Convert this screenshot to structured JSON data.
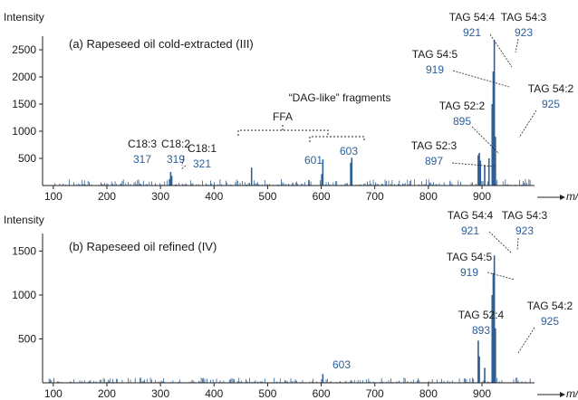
{
  "colors": {
    "spectrum": "#2f5f95",
    "mz_label": "#2c5e9b",
    "text": "#1a1a1a",
    "axis": "#222222"
  },
  "axis_unit_label": "m/z",
  "chart_data": [
    {
      "type": "bar",
      "ylabel": "Intensity",
      "xlabel": "m/z",
      "title": "(a) Rapeseed oil cold-extracted (III)",
      "xlim": [
        80,
        998
      ],
      "ylim": [
        0,
        2750
      ],
      "xticks": [
        100,
        200,
        300,
        400,
        500,
        600,
        700,
        800,
        900
      ],
      "yticks": [
        500,
        1000,
        1500,
        2000,
        2500
      ],
      "peaks": [
        {
          "x": 317,
          "y": 120
        },
        {
          "x": 319,
          "y": 250
        },
        {
          "x": 321,
          "y": 180
        },
        {
          "x": 470,
          "y": 330
        },
        {
          "x": 577,
          "y": 100
        },
        {
          "x": 601,
          "y": 210
        },
        {
          "x": 603,
          "y": 480
        },
        {
          "x": 655,
          "y": 420
        },
        {
          "x": 657,
          "y": 510
        },
        {
          "x": 893,
          "y": 560
        },
        {
          "x": 895,
          "y": 600
        },
        {
          "x": 897,
          "y": 460
        },
        {
          "x": 905,
          "y": 380
        },
        {
          "x": 913,
          "y": 500
        },
        {
          "x": 919,
          "y": 1500
        },
        {
          "x": 921,
          "y": 2100
        },
        {
          "x": 923,
          "y": 2680
        },
        {
          "x": 925,
          "y": 900
        }
      ],
      "noise_level": 120,
      "group_labels": [
        {
          "text": "FFA"
        },
        {
          "text": "“DAG-like” fragments"
        }
      ],
      "peak_labels": [
        {
          "name": "C18:3",
          "mz": "317"
        },
        {
          "name": "C18:2",
          "mz": "319"
        },
        {
          "name": "C18:1",
          "mz": "321"
        },
        {
          "name": "",
          "mz": "601"
        },
        {
          "name": "",
          "mz": "603"
        },
        {
          "name": "TAG 52:3",
          "mz": "897"
        },
        {
          "name": "TAG 52:2",
          "mz": "895"
        },
        {
          "name": "TAG 54:5",
          "mz": "919"
        },
        {
          "name": "TAG 54:4",
          "mz": "921"
        },
        {
          "name": "TAG 54:3",
          "mz": "923"
        },
        {
          "name": "TAG 54:2",
          "mz": "925"
        }
      ]
    },
    {
      "type": "bar",
      "ylabel": "Intensity",
      "xlabel": "m/z",
      "title": "(b) Rapeseed oil refined (IV)",
      "xlim": [
        80,
        998
      ],
      "ylim": [
        0,
        1700
      ],
      "xticks": [
        100,
        200,
        300,
        400,
        500,
        600,
        700,
        800,
        900
      ],
      "yticks": [
        500,
        1000,
        1500
      ],
      "peaks": [
        {
          "x": 603,
          "y": 100
        },
        {
          "x": 893,
          "y": 480
        },
        {
          "x": 895,
          "y": 300
        },
        {
          "x": 905,
          "y": 170
        },
        {
          "x": 919,
          "y": 1000
        },
        {
          "x": 921,
          "y": 1250
        },
        {
          "x": 923,
          "y": 1450
        },
        {
          "x": 925,
          "y": 620
        }
      ],
      "noise_level": 60,
      "peak_labels": [
        {
          "name": "",
          "mz": "603"
        },
        {
          "name": "TAG 52:4",
          "mz": "893"
        },
        {
          "name": "TAG 54:5",
          "mz": "919"
        },
        {
          "name": "TAG 54:4",
          "mz": "921"
        },
        {
          "name": "TAG 54:3",
          "mz": "923"
        },
        {
          "name": "TAG 54:2",
          "mz": "925"
        }
      ]
    }
  ]
}
